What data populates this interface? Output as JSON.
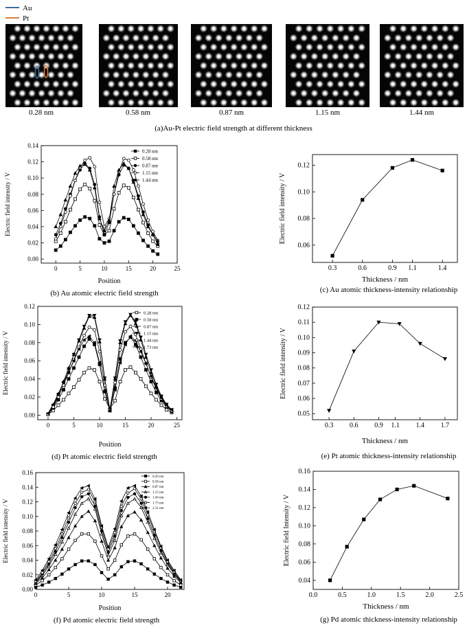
{
  "legend_top": {
    "items": [
      {
        "label": "Au",
        "color": "#3a6ea5"
      },
      {
        "label": "Pt",
        "color": "#e07b39"
      }
    ]
  },
  "panel_a": {
    "caption": "(a)Au-Pt electric field strength at different thickness",
    "images": [
      {
        "label": "0.28 nm"
      },
      {
        "label": "0.58 nm"
      },
      {
        "label": "0.87 nm"
      },
      {
        "label": "1.15 nm"
      },
      {
        "label": "1.44 nm"
      }
    ]
  },
  "chart_data": [
    {
      "id": "b",
      "type": "line",
      "caption": "(b) Au atomic electric field strength",
      "xlabel": "Position",
      "ylabel": "Electric field intensity / V",
      "xlim": [
        -3,
        25
      ],
      "ylim": [
        -0.005,
        0.14
      ],
      "xticks": [
        0,
        5,
        10,
        15,
        20,
        25
      ],
      "yticks": [
        0.0,
        0.02,
        0.04,
        0.06,
        0.08,
        0.1,
        0.12,
        0.14
      ],
      "ytick_labels": [
        "0.00",
        "0.02",
        "0.04",
        "0.06",
        "0.08",
        "0.10",
        "0.12",
        "0.14"
      ],
      "legend_position": "top-right",
      "x": [
        0,
        1,
        2,
        3,
        4,
        5,
        6,
        7,
        8,
        9,
        10,
        11,
        12,
        13,
        14,
        15,
        16,
        17,
        18,
        19,
        20,
        21
      ],
      "series": [
        {
          "name": "0.28 nm",
          "marker": "square-filled",
          "values": [
            0.011,
            0.016,
            0.024,
            0.033,
            0.041,
            0.048,
            0.052,
            0.05,
            0.041,
            0.025,
            0.02,
            0.022,
            0.035,
            0.046,
            0.051,
            0.049,
            0.041,
            0.032,
            0.023,
            0.016,
            0.01,
            0.006
          ]
        },
        {
          "name": "0.58 nm",
          "marker": "square-open",
          "values": [
            0.022,
            0.032,
            0.046,
            0.061,
            0.074,
            0.086,
            0.092,
            0.087,
            0.072,
            0.042,
            0.03,
            0.035,
            0.062,
            0.082,
            0.091,
            0.088,
            0.076,
            0.061,
            0.045,
            0.032,
            0.022,
            0.016
          ]
        },
        {
          "name": "0.87 nm",
          "marker": "circle-filled",
          "values": [
            0.03,
            0.044,
            0.062,
            0.08,
            0.097,
            0.11,
            0.118,
            0.112,
            0.092,
            0.052,
            0.03,
            0.045,
            0.08,
            0.104,
            0.116,
            0.112,
            0.097,
            0.078,
            0.058,
            0.042,
            0.03,
            0.018
          ]
        },
        {
          "name": "1.15 nm",
          "marker": "circle-open",
          "values": [
            0.025,
            0.04,
            0.058,
            0.078,
            0.097,
            0.113,
            0.122,
            0.125,
            0.114,
            0.07,
            0.04,
            0.05,
            0.08,
            0.108,
            0.124,
            0.122,
            0.11,
            0.09,
            0.068,
            0.048,
            0.034,
            0.023
          ]
        },
        {
          "name": "1.44 nm",
          "marker": "triangle-filled",
          "values": [
            0.04,
            0.055,
            0.073,
            0.09,
            0.106,
            0.115,
            0.117,
            0.11,
            0.088,
            0.05,
            0.035,
            0.048,
            0.09,
            0.11,
            0.118,
            0.112,
            0.095,
            0.075,
            0.055,
            0.04,
            0.03,
            0.022
          ]
        }
      ]
    },
    {
      "id": "c",
      "type": "line",
      "caption": "(c) Au atomic thickness-intensity relationship",
      "xlabel": "Thickness /  nm",
      "ylabel": "Electric field intensity /  V",
      "xlim": [
        0.1,
        1.55
      ],
      "ylim": [
        0.047,
        0.128
      ],
      "xticks": [
        0.3,
        0.6,
        0.9,
        1.1,
        1.4
      ],
      "xtick_labels": [
        "0.3",
        "0.6",
        "0.9",
        "1.1",
        "1.4"
      ],
      "yticks": [
        0.06,
        0.08,
        0.1,
        0.12
      ],
      "ytick_labels": [
        "0.06",
        "0.08",
        "0.10",
        "0.12"
      ],
      "series": [
        {
          "name": "",
          "marker": "square-filled",
          "x": [
            0.3,
            0.6,
            0.9,
            1.1,
            1.4
          ],
          "values": [
            0.052,
            0.094,
            0.118,
            0.124,
            0.116
          ]
        }
      ]
    },
    {
      "id": "d",
      "type": "line",
      "caption": "(d) Pt atomic electric field strength",
      "xlabel": "Position",
      "ylabel": "Electric field intensity / V",
      "xlim": [
        -2,
        26
      ],
      "ylim": [
        -0.005,
        0.12
      ],
      "xticks": [
        0,
        5,
        10,
        15,
        20,
        25
      ],
      "yticks": [
        0.0,
        0.02,
        0.04,
        0.06,
        0.08,
        0.1,
        0.12
      ],
      "ytick_labels": [
        "0.00",
        "0.02",
        "0.04",
        "0.06",
        "0.08",
        "0.10",
        "0.12"
      ],
      "legend_position": "top-right",
      "x": [
        0,
        1,
        2,
        3,
        4,
        5,
        6,
        7,
        8,
        9,
        10,
        11,
        12,
        13,
        14,
        15,
        16,
        17,
        18,
        19,
        20,
        21,
        22,
        23,
        24
      ],
      "series": [
        {
          "name": "0.28 nm",
          "marker": "square-open",
          "values": [
            0.001,
            0.005,
            0.011,
            0.017,
            0.024,
            0.031,
            0.039,
            0.047,
            0.052,
            0.05,
            0.037,
            0.018,
            0.007,
            0.016,
            0.037,
            0.05,
            0.053,
            0.047,
            0.04,
            0.032,
            0.024,
            0.017,
            0.011,
            0.006,
            0.003
          ]
        },
        {
          "name": "0.58 nm",
          "marker": "square-filled",
          "values": [
            0.001,
            0.008,
            0.017,
            0.028,
            0.04,
            0.052,
            0.064,
            0.076,
            0.084,
            0.078,
            0.056,
            0.026,
            0.005,
            0.03,
            0.062,
            0.08,
            0.086,
            0.078,
            0.064,
            0.05,
            0.037,
            0.025,
            0.016,
            0.009,
            0.004
          ]
        },
        {
          "name": "0.87 nm",
          "marker": "triangle-filled",
          "values": [
            0.001,
            0.011,
            0.023,
            0.037,
            0.052,
            0.067,
            0.082,
            0.096,
            0.109,
            0.108,
            0.081,
            0.04,
            0.006,
            0.04,
            0.08,
            0.101,
            0.11,
            0.101,
            0.083,
            0.064,
            0.047,
            0.032,
            0.02,
            0.011,
            0.005
          ]
        },
        {
          "name": "1.15 nm",
          "marker": "triangle-down-filled",
          "values": [
            0.001,
            0.01,
            0.022,
            0.036,
            0.051,
            0.067,
            0.083,
            0.098,
            0.11,
            0.11,
            0.083,
            0.041,
            0.006,
            0.041,
            0.082,
            0.103,
            0.111,
            0.103,
            0.086,
            0.067,
            0.05,
            0.034,
            0.021,
            0.012,
            0.006
          ]
        },
        {
          "name": "1.44 nm",
          "marker": "circle-open",
          "values": [
            0.001,
            0.009,
            0.02,
            0.033,
            0.047,
            0.061,
            0.075,
            0.088,
            0.097,
            0.094,
            0.07,
            0.033,
            0.006,
            0.036,
            0.072,
            0.092,
            0.098,
            0.089,
            0.073,
            0.057,
            0.042,
            0.029,
            0.018,
            0.01,
            0.005
          ]
        },
        {
          "name": "1.73 nm",
          "marker": "left-triangle-filled",
          "values": [
            0.002,
            0.012,
            0.024,
            0.036,
            0.047,
            0.06,
            0.073,
            0.083,
            0.087,
            0.08,
            0.058,
            0.027,
            0.005,
            0.028,
            0.058,
            0.078,
            0.087,
            0.082,
            0.07,
            0.057,
            0.043,
            0.03,
            0.019,
            0.011,
            0.006
          ]
        }
      ]
    },
    {
      "id": "e",
      "type": "line",
      "caption": "(e) Pt atomic thickness-intensity relationship",
      "xlabel": "Thickness /  nm",
      "ylabel": "Electric field intensity /  V",
      "xlim": [
        0.1,
        1.85
      ],
      "ylim": [
        0.046,
        0.12
      ],
      "xticks": [
        0.3,
        0.6,
        0.9,
        1.1,
        1.4,
        1.7
      ],
      "xtick_labels": [
        "0.3",
        "0.6",
        "0.9",
        "1.1",
        "1.4",
        "1.7"
      ],
      "yticks": [
        0.05,
        0.06,
        0.07,
        0.08,
        0.09,
        0.1,
        0.11,
        0.12
      ],
      "ytick_labels": [
        "0.05",
        "0.06",
        "0.07",
        "0.08",
        "0.09",
        "0.10",
        "0.11",
        "0.12"
      ],
      "series": [
        {
          "name": "",
          "marker": "triangle-down-filled",
          "x": [
            0.3,
            0.6,
            0.9,
            1.15,
            1.4,
            1.7
          ],
          "values": [
            0.052,
            0.091,
            0.11,
            0.109,
            0.096,
            0.086
          ]
        }
      ]
    },
    {
      "id": "f",
      "type": "line",
      "caption": "(f) Pd atomic electric field strength",
      "xlabel": "Position",
      "ylabel": "Electric field intensity  /  V",
      "xlim": [
        0,
        22.5
      ],
      "ylim": [
        0,
        0.16
      ],
      "xticks": [
        0,
        5,
        10,
        15,
        20
      ],
      "yticks": [
        0.0,
        0.02,
        0.04,
        0.06,
        0.08,
        0.1,
        0.12,
        0.14,
        0.16
      ],
      "ytick_labels": [
        "0.00",
        "0.02",
        "0.04",
        "0.06",
        "0.08",
        "0.10",
        "0.12",
        "0.14",
        "0.16"
      ],
      "legend_position": "top-right",
      "x": [
        0,
        1,
        2,
        3,
        4,
        5,
        6,
        7,
        8,
        9,
        10,
        11,
        12,
        13,
        14,
        15,
        16,
        17,
        18,
        19,
        20,
        21,
        22
      ],
      "series": [
        {
          "name": "0.29 nm",
          "marker": "square-filled",
          "values": [
            0.003,
            0.006,
            0.01,
            0.015,
            0.021,
            0.028,
            0.034,
            0.039,
            0.039,
            0.034,
            0.023,
            0.014,
            0.02,
            0.031,
            0.038,
            0.039,
            0.035,
            0.028,
            0.021,
            0.015,
            0.01,
            0.006,
            0.003
          ]
        },
        {
          "name": "0.58 nm",
          "marker": "square-open",
          "values": [
            0.006,
            0.012,
            0.02,
            0.03,
            0.042,
            0.055,
            0.067,
            0.076,
            0.076,
            0.066,
            0.046,
            0.028,
            0.04,
            0.061,
            0.073,
            0.076,
            0.068,
            0.055,
            0.042,
            0.03,
            0.02,
            0.012,
            0.006
          ]
        },
        {
          "name": "0.87 nm",
          "marker": "triangle-filled",
          "values": [
            0.008,
            0.016,
            0.027,
            0.04,
            0.055,
            0.071,
            0.087,
            0.1,
            0.107,
            0.094,
            0.066,
            0.04,
            0.057,
            0.086,
            0.101,
            0.106,
            0.095,
            0.078,
            0.06,
            0.043,
            0.029,
            0.018,
            0.009
          ]
        },
        {
          "name": "1.15 nm",
          "marker": "triangle-open",
          "values": [
            0.009,
            0.019,
            0.032,
            0.048,
            0.065,
            0.084,
            0.103,
            0.118,
            0.124,
            0.11,
            0.076,
            0.047,
            0.067,
            0.101,
            0.118,
            0.124,
            0.112,
            0.092,
            0.07,
            0.05,
            0.034,
            0.021,
            0.01
          ]
        },
        {
          "name": "1.44 nm",
          "marker": "circle-filled",
          "values": [
            0.01,
            0.021,
            0.035,
            0.052,
            0.071,
            0.092,
            0.112,
            0.127,
            0.131,
            0.114,
            0.08,
            0.051,
            0.073,
            0.108,
            0.126,
            0.131,
            0.118,
            0.097,
            0.074,
            0.053,
            0.036,
            0.022,
            0.011
          ]
        },
        {
          "name": "1.73 nm",
          "marker": "circle-open",
          "values": [
            0.011,
            0.023,
            0.038,
            0.056,
            0.076,
            0.098,
            0.118,
            0.133,
            0.137,
            0.12,
            0.085,
            0.055,
            0.078,
            0.114,
            0.132,
            0.138,
            0.124,
            0.102,
            0.079,
            0.057,
            0.038,
            0.024,
            0.012
          ]
        },
        {
          "name": "2.31 nm",
          "marker": "left-triangle-filled",
          "values": [
            0.013,
            0.026,
            0.042,
            0.061,
            0.082,
            0.105,
            0.125,
            0.139,
            0.142,
            0.124,
            0.087,
            0.058,
            0.083,
            0.121,
            0.139,
            0.142,
            0.128,
            0.106,
            0.082,
            0.059,
            0.04,
            0.026,
            0.013
          ]
        }
      ]
    },
    {
      "id": "g",
      "type": "line",
      "caption": "(g) Pd atomic thickness-intensity relationship",
      "xlabel": "Thickness /  nm",
      "ylabel": "Electric field Intensity /  V",
      "xlim": [
        0,
        2.5
      ],
      "ylim": [
        0.03,
        0.16
      ],
      "xticks": [
        0.0,
        0.5,
        1.0,
        1.5,
        2.0,
        2.5
      ],
      "xtick_labels": [
        "0.0",
        "0.5",
        "1.0",
        "1.5",
        "2.0",
        "2.5"
      ],
      "yticks": [
        0.04,
        0.06,
        0.08,
        0.1,
        0.12,
        0.14,
        0.16
      ],
      "ytick_labels": [
        "0.04",
        "0.06",
        "0.08",
        "0.10",
        "0.12",
        "0.14",
        "0.16"
      ],
      "series": [
        {
          "name": "",
          "marker": "square-filled",
          "x": [
            0.29,
            0.58,
            0.87,
            1.15,
            1.44,
            1.73,
            2.31
          ],
          "values": [
            0.04,
            0.077,
            0.107,
            0.129,
            0.14,
            0.144,
            0.13
          ]
        }
      ]
    }
  ]
}
